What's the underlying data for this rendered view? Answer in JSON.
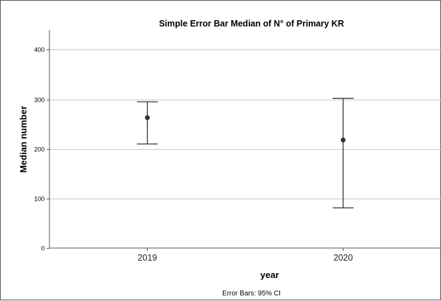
{
  "chart_data": {
    "type": "errorbar",
    "title": "Simple Error Bar Median of N° of Primary KR",
    "xlabel": "year",
    "ylabel": "Median number",
    "footnote": "Error Bars: 95% CI",
    "ylim": [
      0,
      440
    ],
    "yticks": [
      0,
      100,
      200,
      300,
      400
    ],
    "grid": true,
    "categories": [
      "2019",
      "2020"
    ],
    "points": [
      {
        "category": "2019",
        "median": 263,
        "lower": 210,
        "upper": 295
      },
      {
        "category": "2020",
        "median": 218,
        "lower": 81,
        "upper": 302
      }
    ],
    "colors": {
      "grid": "#c8c8c8",
      "axis": "#555555",
      "marks": "#333333"
    }
  }
}
